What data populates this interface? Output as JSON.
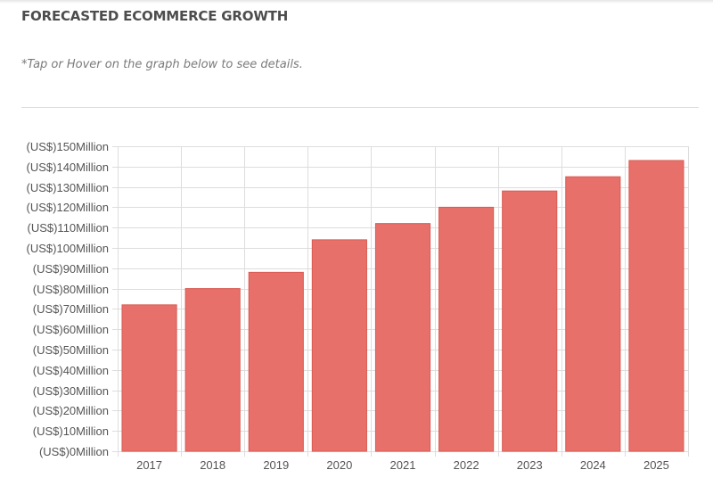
{
  "header": {
    "title": "FORECASTED ECOMMERCE GROWTH",
    "hint": "*Tap or Hover on the graph below to see details."
  },
  "chart_data": {
    "type": "bar",
    "title": "",
    "xlabel": "",
    "ylabel": "",
    "categories": [
      "2017",
      "2018",
      "2019",
      "2020",
      "2021",
      "2022",
      "2023",
      "2024",
      "2025"
    ],
    "values": [
      72,
      80,
      88,
      104,
      112,
      120,
      128,
      135,
      143
    ],
    "ylim": [
      0,
      150
    ],
    "y_ticks": [
      0,
      10,
      20,
      30,
      40,
      50,
      60,
      70,
      80,
      90,
      100,
      110,
      120,
      130,
      140,
      150
    ],
    "y_tick_labels": [
      "(US$)0Million",
      "(US$)10Million",
      "(US$)20Million",
      "(US$)30Million",
      "(US$)40Million",
      "(US$)50Million",
      "(US$)60Million",
      "(US$)70Million",
      "(US$)80Million",
      "(US$)90Million",
      "(US$)100Million",
      "(US$)110Million",
      "(US$)120Million",
      "(US$)130Million",
      "(US$)140Million",
      "(US$)150Million"
    ],
    "grid": true,
    "legend": "none",
    "colors": {
      "bar": "#e8706a",
      "bar_border": "#d95a53",
      "grid": "#dddddd",
      "axis_text": "#555555"
    }
  }
}
